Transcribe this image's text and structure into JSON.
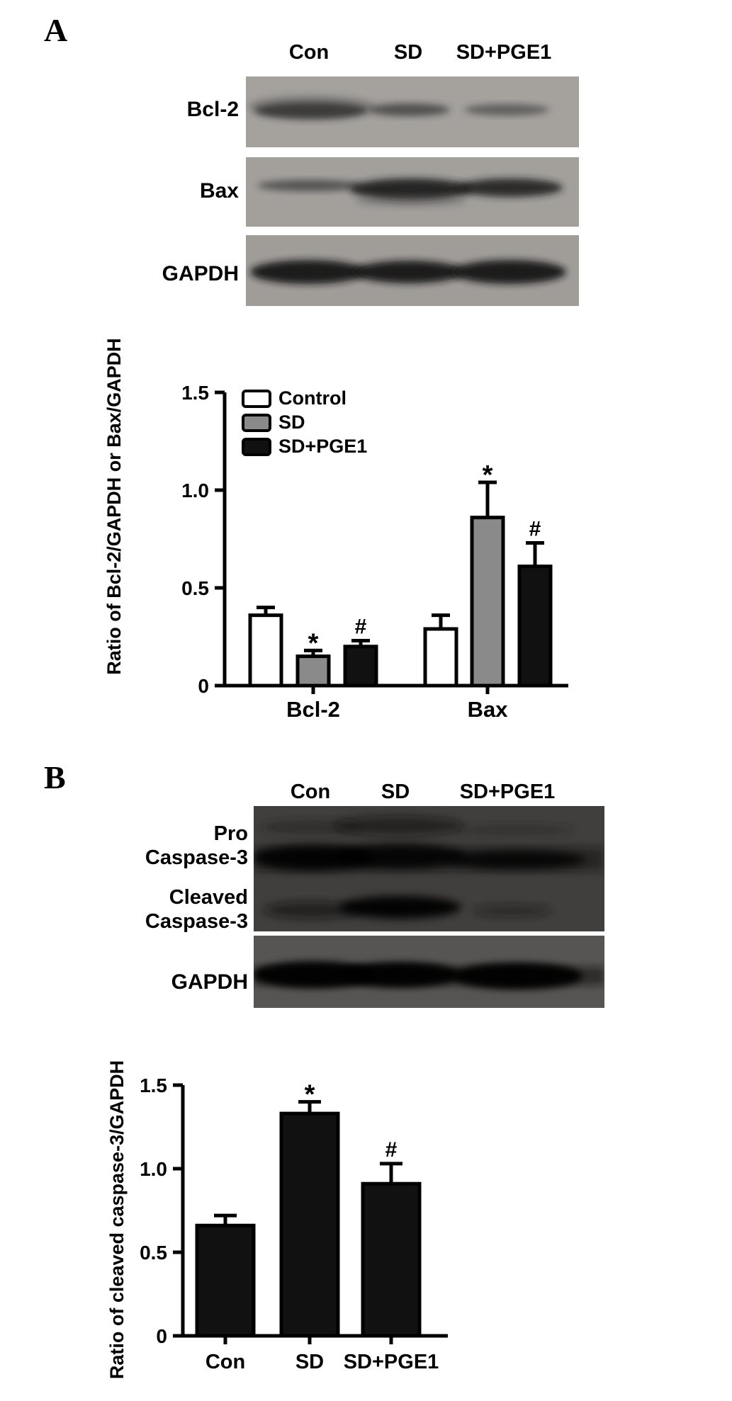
{
  "figure": {
    "panel_a": {
      "label": "A",
      "blot": {
        "lanes": [
          "Con",
          "SD",
          "SD+PGE1"
        ],
        "rows": [
          {
            "lines": [
              "Bcl-2"
            ]
          },
          {
            "lines": [
              "Bax"
            ]
          },
          {
            "lines": [
              "GAPDH"
            ]
          }
        ]
      }
    },
    "panel_b": {
      "label": "B",
      "blot": {
        "lanes": [
          "Con",
          "SD",
          "SD+PGE1"
        ],
        "rows": [
          {
            "lines": [
              "Pro",
              "Caspase-3"
            ]
          },
          {
            "lines": [
              "Cleaved",
              "Caspase-3"
            ]
          },
          {
            "lines": [
              "GAPDH"
            ]
          }
        ]
      }
    }
  },
  "chart_data": [
    {
      "panel": "A",
      "type": "bar",
      "categories": [
        "Bcl-2",
        "Bax"
      ],
      "series": [
        {
          "name": "Control",
          "color": "#ffffff",
          "values": [
            0.36,
            0.29
          ],
          "errors": [
            0.04,
            0.07
          ]
        },
        {
          "name": "SD",
          "color": "#8a8a8a",
          "values": [
            0.15,
            0.86
          ],
          "errors": [
            0.03,
            0.18
          ]
        },
        {
          "name": "SD+PGE1",
          "color": "#111111",
          "values": [
            0.2,
            0.61
          ],
          "errors": [
            0.03,
            0.12
          ]
        }
      ],
      "annotations": [
        {
          "category": "Bcl-2",
          "series": "SD",
          "symbol": "*"
        },
        {
          "category": "Bcl-2",
          "series": "SD+PGE1",
          "symbol": "#"
        },
        {
          "category": "Bax",
          "series": "SD",
          "symbol": "*"
        },
        {
          "category": "Bax",
          "series": "SD+PGE1",
          "symbol": "#"
        }
      ],
      "ylabel": "Ratio of Bcl-2/GAPDH or Bax/GAPDH",
      "ylim": [
        0,
        1.5
      ],
      "yticks": [
        0,
        0.5,
        1.0,
        1.5
      ],
      "ytick_labels": [
        "0",
        "0.5",
        "1.0",
        "1.5"
      ],
      "legend_position": "top-left",
      "grid": false
    },
    {
      "panel": "B",
      "type": "bar",
      "categories": [
        "Con",
        "SD",
        "SD+PGE1"
      ],
      "values": [
        0.66,
        1.33,
        0.91
      ],
      "errors": [
        0.06,
        0.07,
        0.12
      ],
      "bar_color": "#111111",
      "annotations": [
        {
          "category": "SD",
          "symbol": "*"
        },
        {
          "category": "SD+PGE1",
          "symbol": "#"
        }
      ],
      "ylabel": "Ratio of cleaved caspase-3/GAPDH",
      "ylim": [
        0,
        1.5
      ],
      "yticks": [
        0,
        0.5,
        1.0,
        1.5
      ],
      "ytick_labels": [
        "0",
        "0.5",
        "1.0",
        "1.5"
      ],
      "grid": false
    }
  ]
}
